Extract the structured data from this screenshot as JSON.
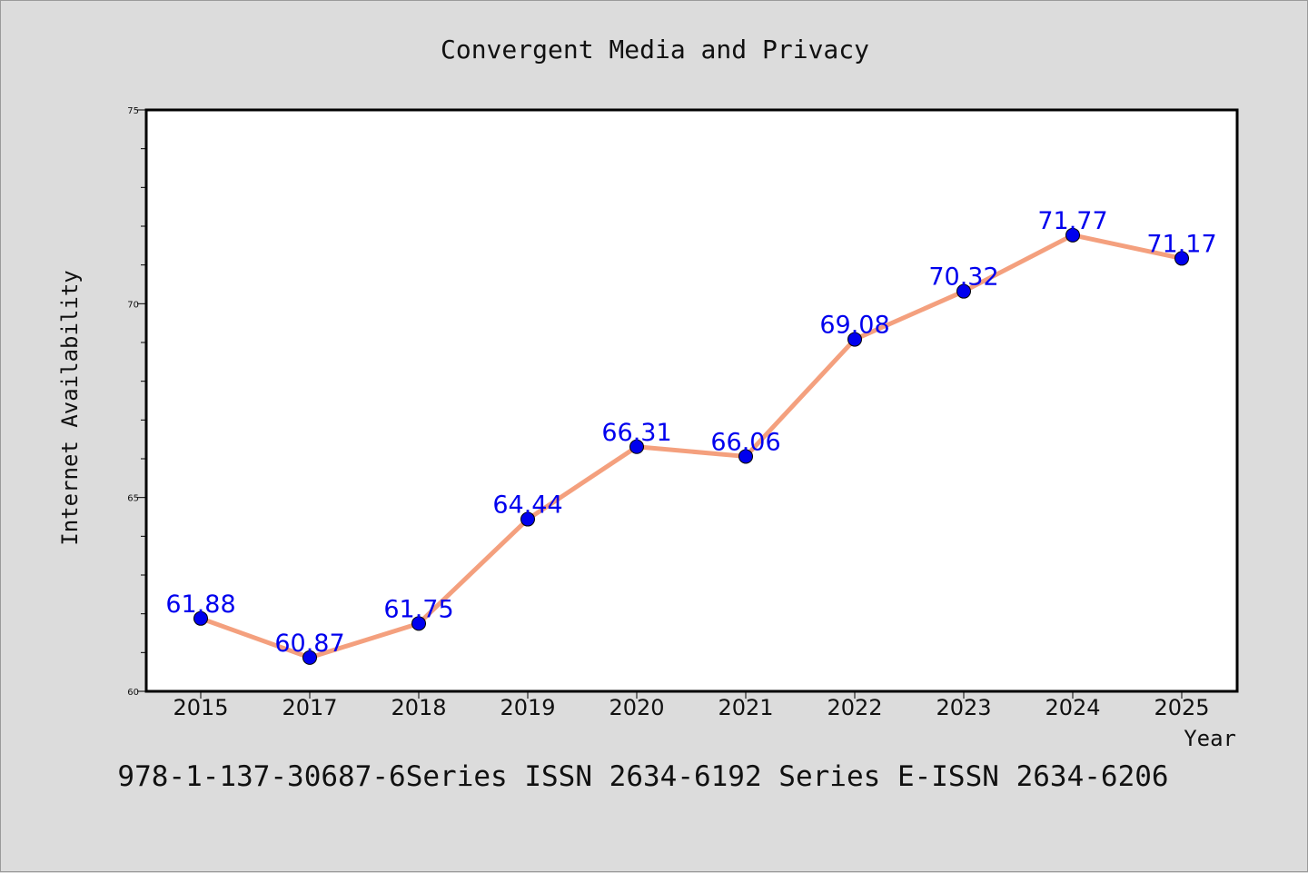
{
  "chart_data": {
    "type": "line",
    "title": "Convergent Media and Privacy",
    "xlabel": "Year",
    "ylabel": "Internet Availability",
    "categories": [
      "2015",
      "2017",
      "2018",
      "2019",
      "2020",
      "2021",
      "2022",
      "2023",
      "2024",
      "2025"
    ],
    "series": [
      {
        "values": [
          61.88,
          60.87,
          61.75,
          64.44,
          66.31,
          66.06,
          69.08,
          70.32,
          71.77,
          71.17
        ]
      }
    ],
    "ylim": [
      60,
      75
    ],
    "yticks": [
      "60",
      "65",
      "70",
      "75"
    ],
    "grid": false,
    "legend": "none",
    "colors": {
      "line": "#f4a07e",
      "marker": "#0000ee",
      "label": "#0000ee",
      "background": "#dcdcdc",
      "plot_background": "#ffffff"
    }
  },
  "footer": {
    "text": "978-1-137-30687-6Series ISSN 2634-6192 Series E-ISSN 2634-6206"
  }
}
